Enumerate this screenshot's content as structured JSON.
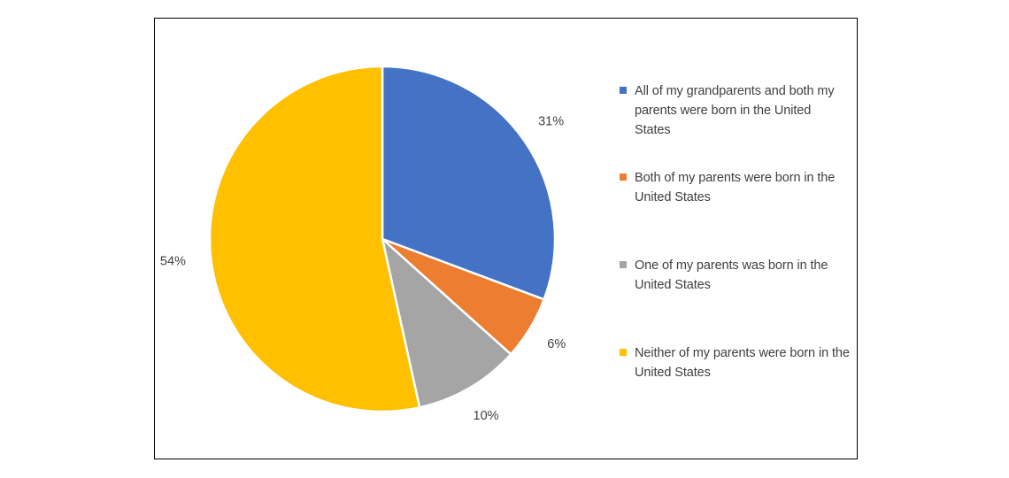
{
  "chart_data": {
    "type": "pie",
    "title": "",
    "start_angle_deg": 0,
    "direction": "clockwise",
    "legend_position": "right",
    "slices": [
      {
        "label": "All of my grandparents and both my parents were born in the United States",
        "value": 31,
        "display": "31%",
        "color": "#4472C4"
      },
      {
        "label": "Both of my parents were born in the United States",
        "value": 6,
        "display": "6%",
        "color": "#ED7D31"
      },
      {
        "label": "One of my parents was born in the United States",
        "value": 10,
        "display": "10%",
        "color": "#A5A5A5"
      },
      {
        "label": "Neither of my parents were born in the United States",
        "value": 54,
        "display": "54%",
        "color": "#FFC000"
      }
    ]
  }
}
